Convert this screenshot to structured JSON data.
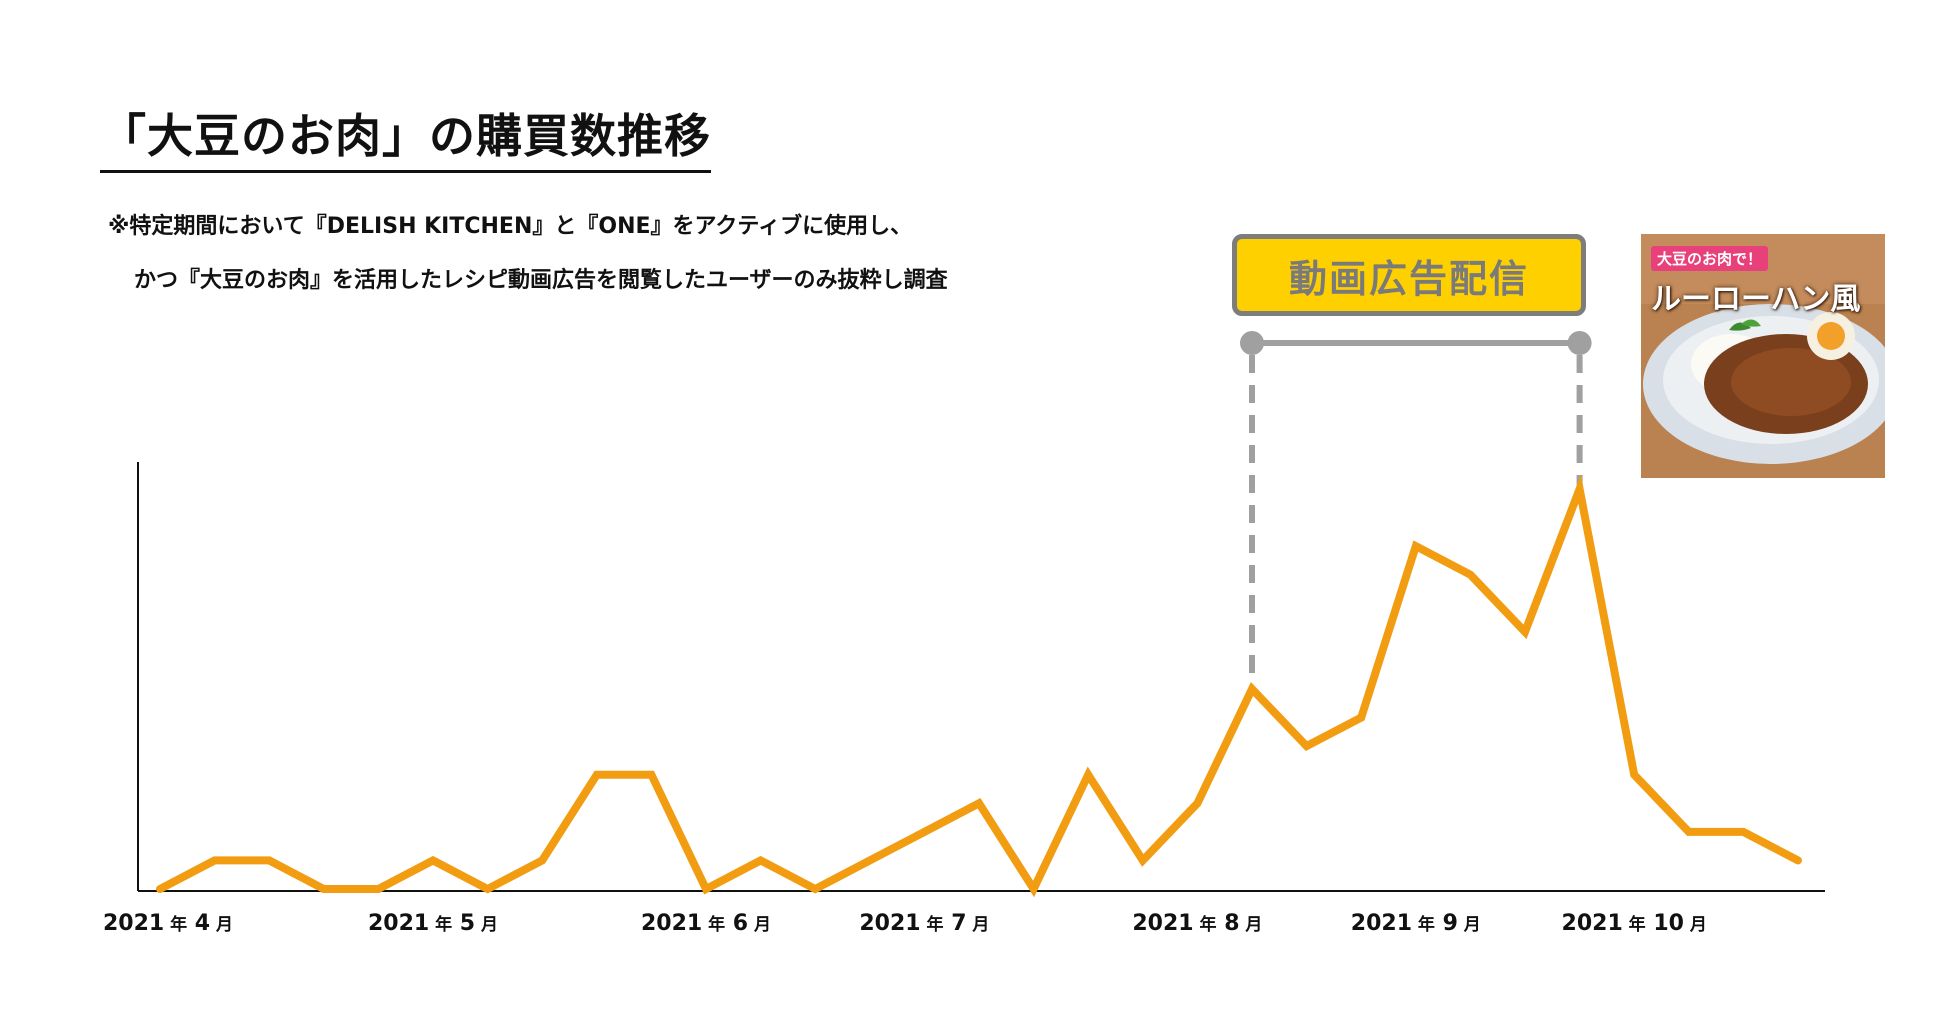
{
  "title": "「大豆のお肉」の購買数推移",
  "note": {
    "line1": "※特定期間において『DELISH KITCHEN』と『ONE』をアクティブに使用し、",
    "line2": "かつ『大豆のお肉』を活用したレシピ動画広告を閲覧したユーザーのみ抜粋し調査"
  },
  "badge": {
    "label": "動画広告配信"
  },
  "thumbnail": {
    "tag": "大豆のお肉で！",
    "title": "ルーローハン風"
  },
  "colors": {
    "line": "#f29d11",
    "badge_fill": "#ffd000",
    "badge_border": "#7d7d7d",
    "bracket": "#a0a0a0"
  },
  "chart_data": {
    "type": "line",
    "title": "「大豆のお肉」の購買数推移",
    "xlabel": "",
    "ylabel": "",
    "y_axis_labels": false,
    "ylim": [
      0,
      14
    ],
    "grid": false,
    "x_tick_labels": [
      {
        "year": "2021",
        "nen": "年",
        "month": "4",
        "tsuki": "月",
        "index": 0
      },
      {
        "year": "2021",
        "nen": "年",
        "month": "5",
        "tsuki": "月",
        "index": 5
      },
      {
        "year": "2021",
        "nen": "年",
        "month": "6",
        "tsuki": "月",
        "index": 10
      },
      {
        "year": "2021",
        "nen": "年",
        "month": "7",
        "tsuki": "月",
        "index": 14
      },
      {
        "year": "2021",
        "nen": "年",
        "month": "8",
        "tsuki": "月",
        "index": 19
      },
      {
        "year": "2021",
        "nen": "年",
        "month": "9",
        "tsuki": "月",
        "index": 23
      },
      {
        "year": "2021",
        "nen": "年",
        "month": "10",
        "tsuki": "月",
        "index": 27
      }
    ],
    "series": [
      {
        "values": [
          0,
          1,
          1,
          0,
          0,
          1,
          0,
          1,
          4,
          4,
          0,
          1,
          0,
          1,
          2,
          3,
          0,
          4,
          1,
          3,
          7,
          5,
          6,
          12,
          11,
          9,
          14,
          4,
          2,
          2,
          1
        ]
      }
    ],
    "annotation": {
      "label": "動画広告配信",
      "start_index": 20,
      "end_index": 26
    }
  }
}
